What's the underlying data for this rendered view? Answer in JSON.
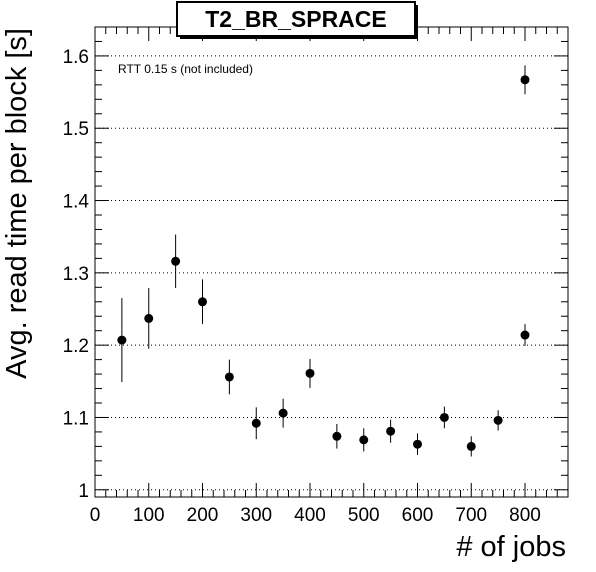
{
  "chart_data": {
    "type": "scatter",
    "title": "T2_BR_SPRACE",
    "xlabel": "# of jobs",
    "ylabel": "Avg. read time per block [s]",
    "annotation": "RTT 0.15 s (not included)",
    "xlim": [
      0,
      880
    ],
    "ylim": [
      0.99,
      1.64
    ],
    "x_ticks": [
      0,
      100,
      200,
      300,
      400,
      500,
      600,
      700,
      800
    ],
    "y_ticks": [
      1.0,
      1.1,
      1.2,
      1.3,
      1.4,
      1.5,
      1.6
    ],
    "y_grid": true,
    "x_grid": false,
    "series": [
      {
        "points": [
          {
            "x": 50,
            "y": 1.207,
            "err": 0.058
          },
          {
            "x": 100,
            "y": 1.237,
            "err": 0.042
          },
          {
            "x": 150,
            "y": 1.316,
            "err": 0.037
          },
          {
            "x": 200,
            "y": 1.26,
            "err": 0.031
          },
          {
            "x": 250,
            "y": 1.156,
            "err": 0.024
          },
          {
            "x": 300,
            "y": 1.092,
            "err": 0.022
          },
          {
            "x": 350,
            "y": 1.106,
            "err": 0.02
          },
          {
            "x": 400,
            "y": 1.161,
            "err": 0.02
          },
          {
            "x": 450,
            "y": 1.074,
            "err": 0.017
          },
          {
            "x": 500,
            "y": 1.069,
            "err": 0.016
          },
          {
            "x": 550,
            "y": 1.081,
            "err": 0.016
          },
          {
            "x": 600,
            "y": 1.063,
            "err": 0.015
          },
          {
            "x": 650,
            "y": 1.1,
            "err": 0.015
          },
          {
            "x": 700,
            "y": 1.06,
            "err": 0.014
          },
          {
            "x": 750,
            "y": 1.096,
            "err": 0.014
          },
          {
            "x": 800,
            "y": 1.214,
            "err": 0.015
          },
          {
            "x": 800,
            "y": 1.567,
            "err": 0.02
          }
        ]
      }
    ]
  }
}
